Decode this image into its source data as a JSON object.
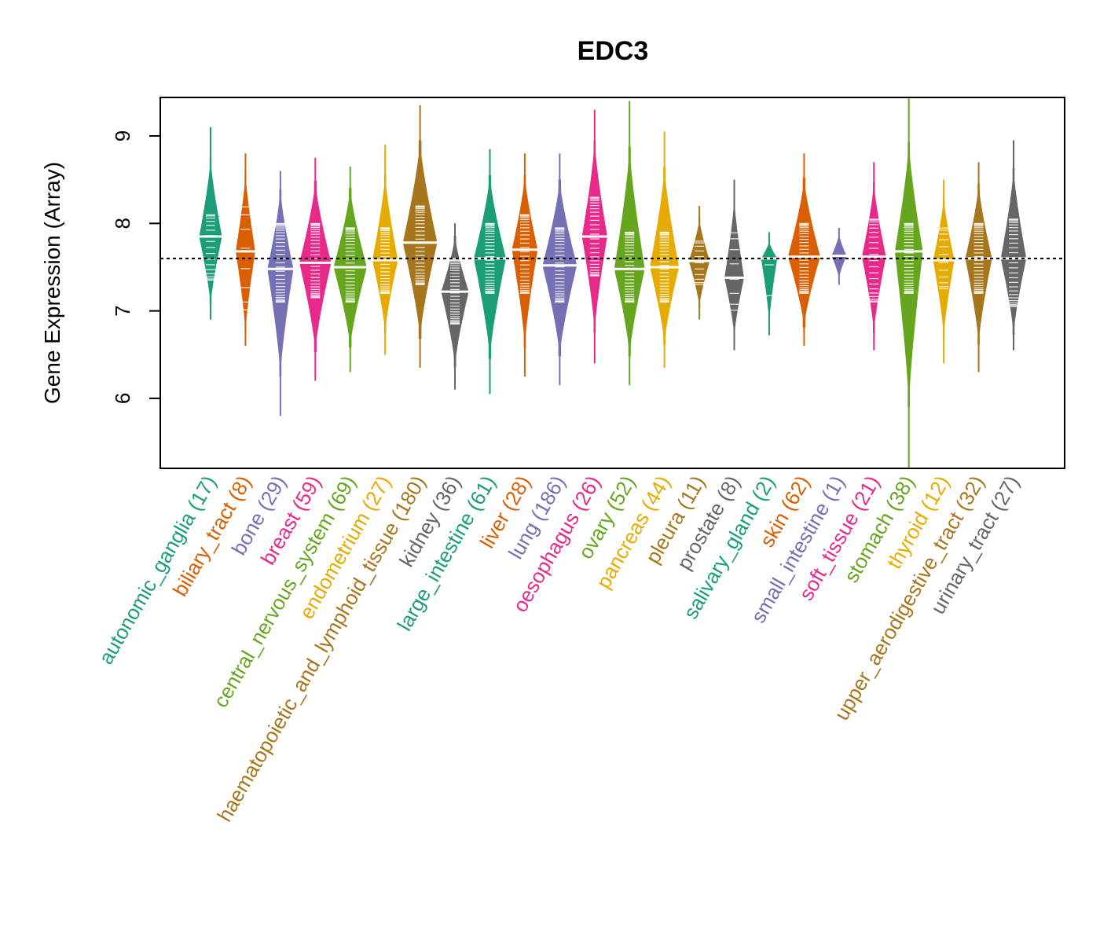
{
  "chart_data": {
    "type": "violin",
    "title": "EDC3",
    "xlabel": "",
    "ylabel": "Gene Expression (Array)",
    "ylim": [
      5.2,
      9.44
    ],
    "yticks": [
      6,
      7,
      8,
      9
    ],
    "reference_line": 7.6,
    "grid": false,
    "categories": [
      {
        "name": "autonomic_ganglia",
        "n": 17,
        "color": "#1B9E77",
        "median": 7.85,
        "min": 6.9,
        "max": 9.1,
        "q_low": 7.35,
        "q_high": 8.1
      },
      {
        "name": "biliary_tract",
        "n": 8,
        "color": "#D95F02",
        "median": 7.68,
        "min": 6.6,
        "max": 8.8,
        "q_low": 7.0,
        "q_high": 8.2
      },
      {
        "name": "bone",
        "n": 29,
        "color": "#7570B3",
        "median": 7.48,
        "min": 5.8,
        "max": 8.6,
        "q_low": 7.1,
        "q_high": 8.0
      },
      {
        "name": "breast",
        "n": 59,
        "color": "#E7298A",
        "median": 7.55,
        "min": 6.2,
        "max": 8.75,
        "q_low": 7.15,
        "q_high": 8.0
      },
      {
        "name": "central_nervous_system",
        "n": 69,
        "color": "#66A61E",
        "median": 7.5,
        "min": 6.3,
        "max": 8.65,
        "q_low": 7.1,
        "q_high": 7.95
      },
      {
        "name": "endometrium",
        "n": 27,
        "color": "#E6AB02",
        "median": 7.58,
        "min": 6.5,
        "max": 8.9,
        "q_low": 7.2,
        "q_high": 7.95
      },
      {
        "name": "haematopoietic_and_lymphoid_tissue",
        "n": 180,
        "color": "#A6761D",
        "median": 7.78,
        "min": 6.35,
        "max": 9.35,
        "q_low": 7.3,
        "q_high": 8.2
      },
      {
        "name": "kidney",
        "n": 36,
        "color": "#666666",
        "median": 7.22,
        "min": 6.1,
        "max": 8.0,
        "q_low": 6.85,
        "q_high": 7.6
      },
      {
        "name": "large_intestine",
        "n": 61,
        "color": "#1B9E77",
        "median": 7.6,
        "min": 6.05,
        "max": 8.85,
        "q_low": 7.2,
        "q_high": 8.0
      },
      {
        "name": "liver",
        "n": 28,
        "color": "#D95F02",
        "median": 7.7,
        "min": 6.25,
        "max": 8.8,
        "q_low": 7.2,
        "q_high": 8.1
      },
      {
        "name": "lung",
        "n": 186,
        "color": "#7570B3",
        "median": 7.52,
        "min": 6.15,
        "max": 8.8,
        "q_low": 7.1,
        "q_high": 7.95
      },
      {
        "name": "oesophagus",
        "n": 26,
        "color": "#E7298A",
        "median": 7.85,
        "min": 6.4,
        "max": 9.3,
        "q_low": 7.4,
        "q_high": 8.3
      },
      {
        "name": "ovary",
        "n": 52,
        "color": "#66A61E",
        "median": 7.48,
        "min": 6.15,
        "max": 9.4,
        "q_low": 7.1,
        "q_high": 7.9
      },
      {
        "name": "pancreas",
        "n": 44,
        "color": "#E6AB02",
        "median": 7.5,
        "min": 6.35,
        "max": 9.05,
        "q_low": 7.1,
        "q_high": 7.9
      },
      {
        "name": "pleura",
        "n": 11,
        "color": "#A6761D",
        "median": 7.57,
        "min": 6.9,
        "max": 8.2,
        "q_low": 7.3,
        "q_high": 7.8
      },
      {
        "name": "prostate",
        "n": 8,
        "color": "#666666",
        "median": 7.38,
        "min": 6.55,
        "max": 8.5,
        "q_low": 7.0,
        "q_high": 7.9
      },
      {
        "name": "salivary_gland",
        "n": 2,
        "color": "#1B9E77",
        "median": 7.6,
        "min": 6.72,
        "max": 7.9,
        "q_low": 7.1,
        "q_high": 7.6
      },
      {
        "name": "skin",
        "n": 62,
        "color": "#D95F02",
        "median": 7.62,
        "min": 6.6,
        "max": 8.8,
        "q_low": 7.2,
        "q_high": 8.0
      },
      {
        "name": "small_intestine",
        "n": 1,
        "color": "#7570B3",
        "median": 7.63,
        "min": 7.3,
        "max": 7.95,
        "q_low": 7.5,
        "q_high": 7.75
      },
      {
        "name": "soft_tissue",
        "n": 21,
        "color": "#E7298A",
        "median": 7.62,
        "min": 6.55,
        "max": 8.7,
        "q_low": 7.1,
        "q_high": 8.05
      },
      {
        "name": "stomach",
        "n": 38,
        "color": "#66A61E",
        "median": 7.68,
        "min": 5.2,
        "max": 9.43,
        "q_low": 7.2,
        "q_high": 8.0
      },
      {
        "name": "thyroid",
        "n": 12,
        "color": "#E6AB02",
        "median": 7.58,
        "min": 6.4,
        "max": 8.5,
        "q_low": 7.25,
        "q_high": 7.95
      },
      {
        "name": "upper_aerodigestive_tract",
        "n": 32,
        "color": "#A6761D",
        "median": 7.6,
        "min": 6.3,
        "max": 8.7,
        "q_low": 7.2,
        "q_high": 8.0
      },
      {
        "name": "urinary_tract",
        "n": 27,
        "color": "#666666",
        "median": 7.6,
        "min": 6.55,
        "max": 8.95,
        "q_low": 7.05,
        "q_high": 8.05
      }
    ]
  }
}
